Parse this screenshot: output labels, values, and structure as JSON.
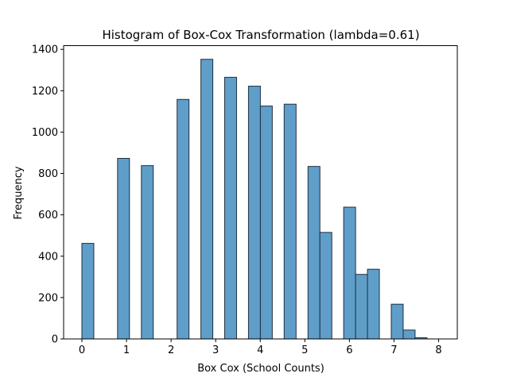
{
  "chart_data": {
    "type": "bar",
    "title": "Histogram of Box-Cox Transformation (lambda=0.61)",
    "xlabel": "Box Cox (School Counts)",
    "ylabel": "Frequency",
    "xlim": [
      -0.41,
      8.42
    ],
    "ylim": [
      0,
      1418
    ],
    "xticks": [
      0,
      1,
      2,
      3,
      4,
      5,
      6,
      7,
      8
    ],
    "yticks": [
      0,
      200,
      400,
      600,
      800,
      1000,
      1200,
      1400
    ],
    "bin_width": 0.267,
    "bars": [
      {
        "x_start": 0.0,
        "value": 462
      },
      {
        "x_start": 0.8,
        "value": 873
      },
      {
        "x_start": 1.334,
        "value": 838
      },
      {
        "x_start": 2.135,
        "value": 1158
      },
      {
        "x_start": 2.669,
        "value": 1352
      },
      {
        "x_start": 3.202,
        "value": 1265
      },
      {
        "x_start": 3.736,
        "value": 1222
      },
      {
        "x_start": 4.003,
        "value": 1126
      },
      {
        "x_start": 4.537,
        "value": 1135
      },
      {
        "x_start": 5.071,
        "value": 834
      },
      {
        "x_start": 5.338,
        "value": 515
      },
      {
        "x_start": 5.871,
        "value": 637
      },
      {
        "x_start": 6.138,
        "value": 312
      },
      {
        "x_start": 6.405,
        "value": 337
      },
      {
        "x_start": 6.939,
        "value": 168
      },
      {
        "x_start": 7.206,
        "value": 43
      },
      {
        "x_start": 7.473,
        "value": 6
      }
    ],
    "bar_color": "#5f9ec9",
    "edge_color": "#1f2f3f",
    "grid": false,
    "legend": "none"
  }
}
